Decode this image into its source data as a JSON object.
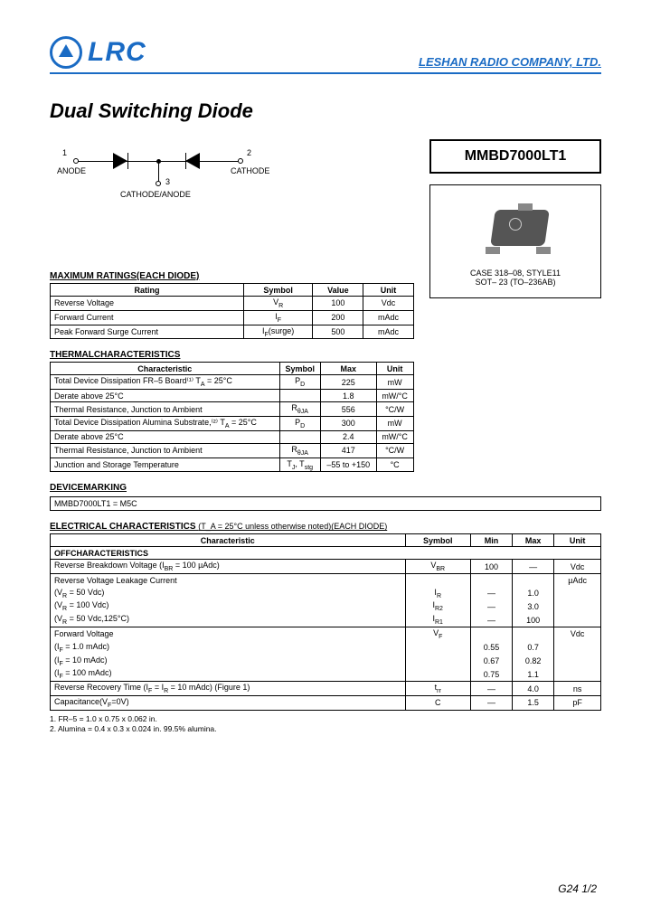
{
  "header": {
    "logo_text": "LRC",
    "company": "LESHAN RADIO COMPANY, LTD."
  },
  "title": "Dual Switching Diode",
  "part_number": "MMBD7000LT1",
  "schematic": {
    "pin1": "1",
    "pin1_label": "ANODE",
    "pin2": "2",
    "pin2_label": "CATHODE",
    "pin3": "3",
    "pin3_label": "CATHODE/ANODE"
  },
  "package": {
    "line1": "CASE  318–08,  STYLE11",
    "line2": "SOT– 23  (TO–236AB)"
  },
  "max_ratings": {
    "heading": "MAXIMUM RATINGS(EACH DIODE)",
    "cols": [
      "Rating",
      "Symbol",
      "Value",
      "Unit"
    ],
    "rows": [
      [
        "Reverse Voltage",
        "V_R",
        "100",
        "Vdc"
      ],
      [
        "Forward Current",
        "I_F",
        "200",
        "mAdc"
      ],
      [
        "Peak Forward Surge Current",
        "I_F(surge)",
        "500",
        "mAdc"
      ]
    ]
  },
  "thermal": {
    "heading": "THERMALCHARACTERISTICS",
    "cols": [
      "Characteristic",
      "Symbol",
      "Max",
      "Unit"
    ],
    "rows": [
      [
        "Total Device Dissipation FR–5 Board⁽¹⁾  T_A = 25°C",
        "P_D",
        "225",
        "mW"
      ],
      [
        "Derate above 25°C",
        "",
        "1.8",
        "mW/°C"
      ],
      [
        "Thermal Resistance, Junction to Ambient",
        "R_θJA",
        "556",
        "°C/W"
      ],
      [
        "Total Device Dissipation  Alumina Substrate,⁽²⁾ T_A = 25°C",
        "P_D",
        "300",
        "mW"
      ],
      [
        "Derate above 25°C",
        "",
        "2.4",
        "mW/°C"
      ],
      [
        "Thermal Resistance, Junction to Ambient",
        "R_θJA",
        "417",
        "°C/W"
      ],
      [
        "Junction and Storage Temperature",
        "T_J, T_stg",
        "–55 to +150",
        "°C"
      ]
    ]
  },
  "marking": {
    "heading": "DEVICEMARKING",
    "text": "MMBD7000LT1 = M5C"
  },
  "electrical": {
    "heading": "ELECTRICAL CHARACTERISTICS",
    "cond": "(T_A = 25°C unless otherwise noted)(EACH DIODE)",
    "cols": [
      "Characteristic",
      "Symbol",
      "Min",
      "Max",
      "Unit"
    ],
    "off_heading": "OFFCHARACTERISTICS",
    "rows": [
      {
        "char": "Reverse Breakdown Voltage  (I_(BR) = 100 µAdc)",
        "sym": "V_(BR)",
        "min": "100",
        "max": "—",
        "unit": "Vdc"
      },
      {
        "char": "Reverse Voltage Leakage Current",
        "sym": "",
        "min": "",
        "max": "",
        "unit": "µAdc"
      },
      {
        "char": "(V_R = 50 Vdc)",
        "sym": "I_R",
        "min": "—",
        "max": "1.0",
        "unit": ""
      },
      {
        "char": "(V_R = 100 Vdc)",
        "sym": "I_R2",
        "min": "—",
        "max": "3.0",
        "unit": ""
      },
      {
        "char": "(V_R = 50 Vdc,125°C)",
        "sym": "I_R1",
        "min": "—",
        "max": "100",
        "unit": ""
      },
      {
        "char": "Forward Voltage",
        "sym": "V_F",
        "min": "",
        "max": "",
        "unit": "Vdc"
      },
      {
        "char": "(I_F = 1.0 mAdc)",
        "sym": "",
        "min": "0.55",
        "max": "0.7",
        "unit": ""
      },
      {
        "char": "(I_F = 10 mAdc)",
        "sym": "",
        "min": "0.67",
        "max": "0.82",
        "unit": ""
      },
      {
        "char": "(I_F = 100 mAdc)",
        "sym": "",
        "min": "0.75",
        "max": "1.1",
        "unit": ""
      },
      {
        "char": "Reverse Recovery Time  (I_F = I_R = 10 mAdc) (Figure 1)",
        "sym": "t_rr",
        "min": "—",
        "max": "4.0",
        "unit": "ns"
      },
      {
        "char": "Capacitance(V_F=0V)",
        "sym": "C",
        "min": "—",
        "max": "1.5",
        "unit": "pF"
      }
    ],
    "group_borders": [
      0,
      1,
      5,
      9,
      10
    ]
  },
  "footnotes": [
    "1. FR–5 = 1.0 x 0.75 x 0.062 in.",
    "2. Alumina = 0.4 x 0.3 x 0.024 in. 99.5% alumina."
  ],
  "pagenum": "G24  1/2",
  "colors": {
    "brand": "#1a6bc4",
    "text": "#000000",
    "bg": "#ffffff"
  }
}
